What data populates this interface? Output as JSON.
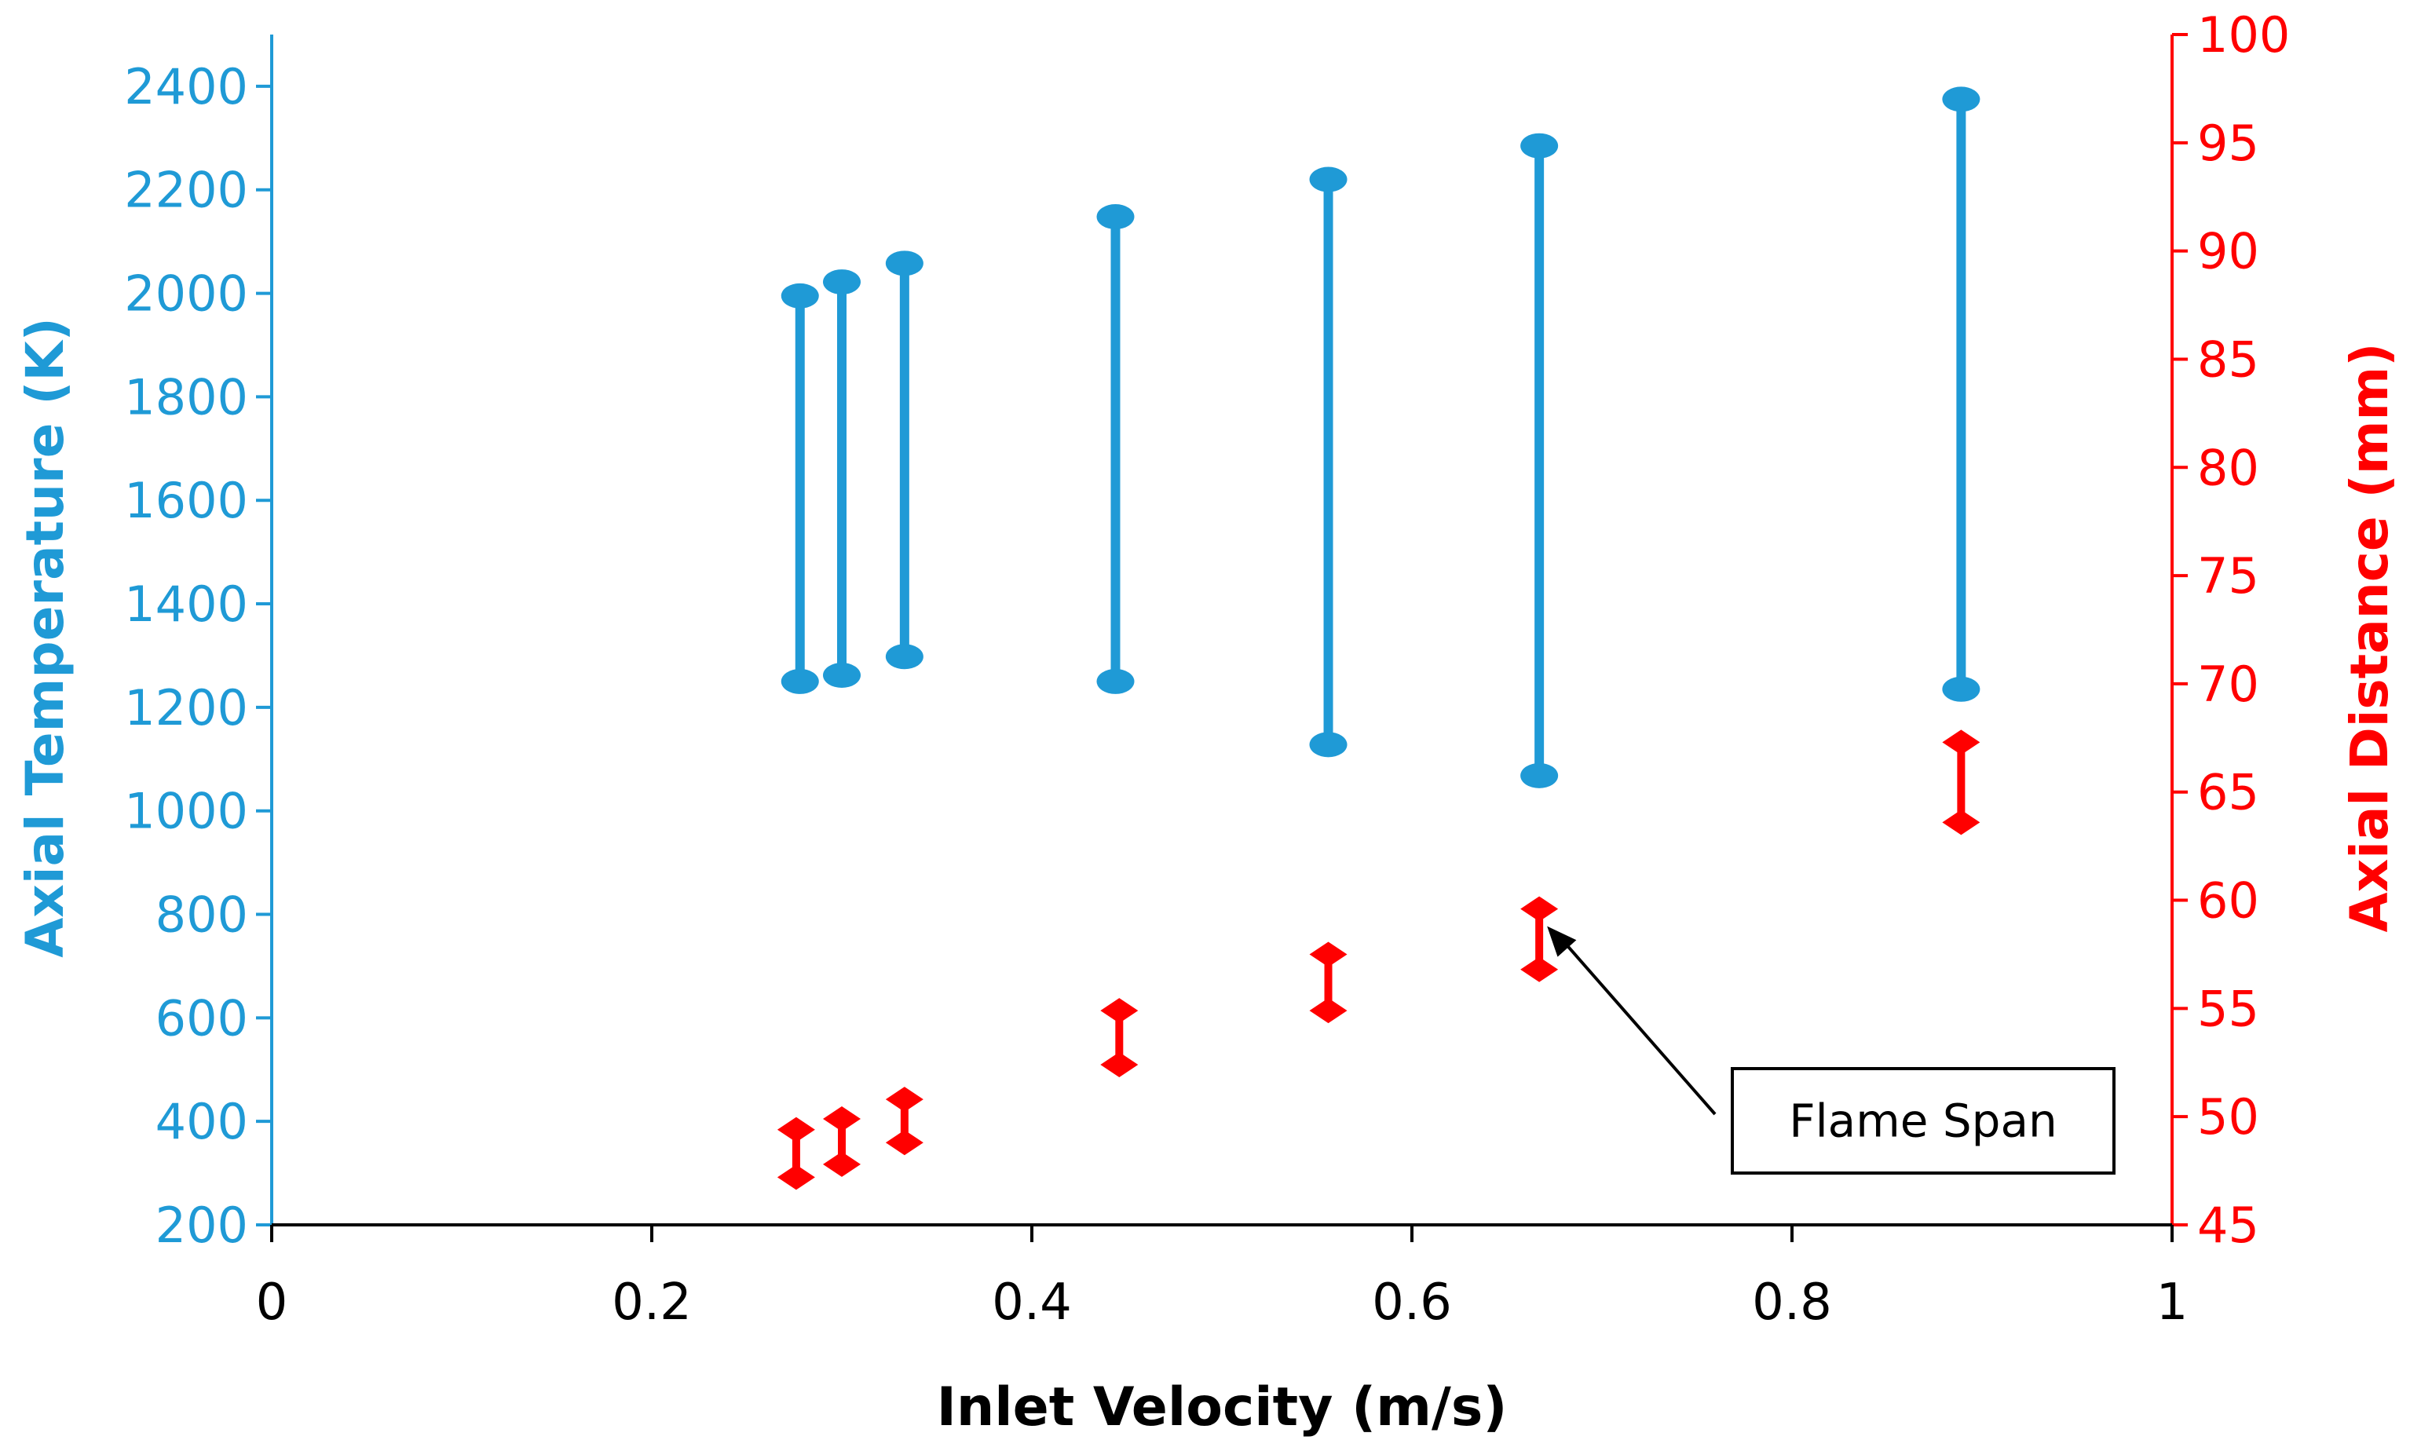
{
  "chart_data": {
    "type": "range",
    "title": "",
    "xlabel": "Inlet Velocity (m/s)",
    "ylabel_left": "Axial Temperature (K)",
    "ylabel_right": "Axial Distance (mm)",
    "xlim": [
      0,
      1
    ],
    "ylim_left": [
      200,
      2500
    ],
    "ylim_right": [
      45,
      100
    ],
    "x_ticks": [
      "0",
      "0.2",
      "0.4",
      "0.6",
      "0.8",
      "1"
    ],
    "y_left_ticks": [
      "200",
      "400",
      "600",
      "800",
      "1000",
      "1200",
      "1400",
      "1600",
      "1800",
      "2000",
      "2200",
      "2400"
    ],
    "y_right_ticks": [
      "45",
      "50",
      "55",
      "60",
      "65",
      "70",
      "75",
      "80",
      "85",
      "90",
      "95",
      "100"
    ],
    "grid": false,
    "colors": {
      "temperature": "#1f9ad6",
      "distance": "#ff0000"
    },
    "series": [
      {
        "name": "Axial Temperature",
        "axis": "left",
        "x": [
          0.278,
          0.3,
          0.333,
          0.444,
          0.556,
          0.667,
          0.889
        ],
        "low": [
          1250,
          1262,
          1298,
          1250,
          1128,
          1068,
          1235
        ],
        "high": [
          1995,
          2022,
          2058,
          2148,
          2220,
          2285,
          2375
        ]
      },
      {
        "name": "Axial Distance",
        "axis": "right",
        "x": [
          0.276,
          0.3,
          0.333,
          0.446,
          0.556,
          0.667,
          0.889
        ],
        "low": [
          47.2,
          47.8,
          48.8,
          52.4,
          54.9,
          56.8,
          63.6
        ],
        "high": [
          49.4,
          49.9,
          50.8,
          54.9,
          57.5,
          59.6,
          67.3
        ]
      }
    ],
    "annotation": {
      "text": "Flame Span"
    }
  }
}
